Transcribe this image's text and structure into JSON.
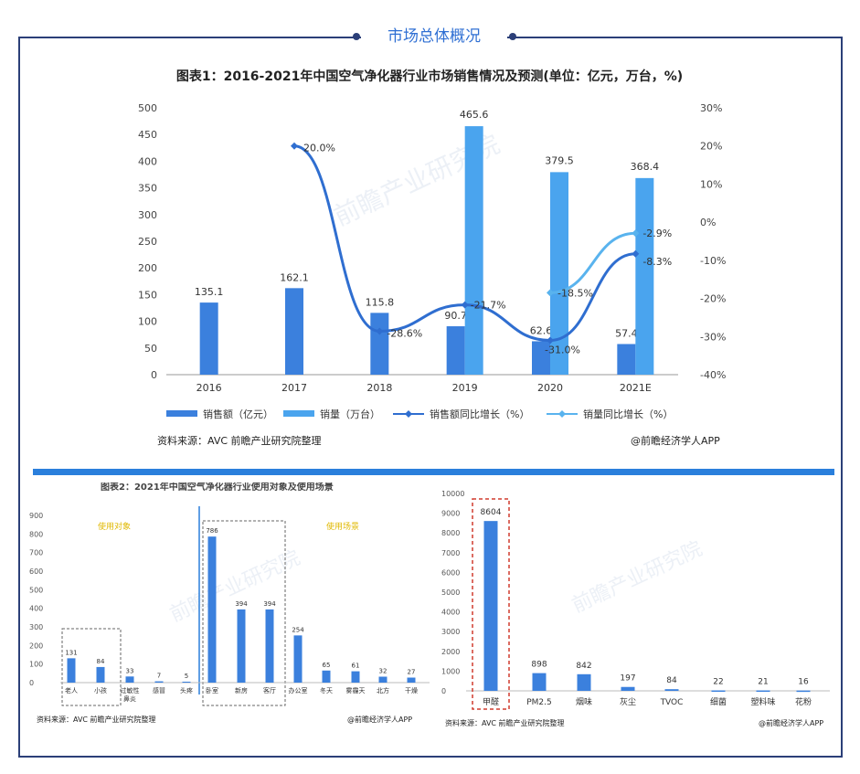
{
  "header": {
    "title": "市场总体概况"
  },
  "colors": {
    "frame": "#2b3f78",
    "accent": "#2f6fd3",
    "bar_dark": "#3b80dd",
    "bar_light": "#4aa4ee",
    "line_dark": "#2f6ed0",
    "line_light": "#59b3ee",
    "highlight": "#d13b2f",
    "legend_yellow": "#e0b800"
  },
  "watermark": "前瞻产业研究院",
  "main": {
    "source": "资料来源：AVC 前瞻产业研究院整理",
    "credit": "@前瞻经济学人APP"
  },
  "bottom_left": {
    "title": "图表2：2021年中国空气净化器行业使用对象及使用场景",
    "group_labels": [
      "使用对象",
      "使用场景"
    ],
    "source": "资料来源：AVC 前瞻产业研究院整理",
    "credit": "@前瞻经济学人APP"
  },
  "bottom_right": {
    "source": "资料来源：AVC 前瞻产业研究院整理",
    "credit": "@前瞻经济学人APP"
  },
  "chart_data": [
    {
      "type": "bar",
      "title": "图表1：2016-2021年中国空气净化器行业市场销售情况及预测(单位：亿元，万台，%)",
      "categories": [
        "2016",
        "2017",
        "2018",
        "2019",
        "2020",
        "2021E"
      ],
      "series": [
        {
          "name": "销售额（亿元）",
          "type": "bar",
          "axis": "left",
          "values": [
            135.1,
            162.1,
            115.8,
            90.7,
            62.6,
            57.4
          ],
          "labels": [
            "135.1",
            "162.1",
            "115.8",
            "90.7",
            "62.6",
            "57.4"
          ]
        },
        {
          "name": "销量（万台）",
          "type": "bar",
          "axis": "left",
          "values": [
            null,
            null,
            null,
            465.6,
            379.5,
            368.4
          ],
          "labels": [
            "",
            "",
            "",
            "465.6",
            "379.5",
            "368.4"
          ]
        },
        {
          "name": "销售额同比增长（%）",
          "type": "line",
          "axis": "right",
          "values": [
            null,
            20.0,
            -28.6,
            -21.7,
            -31.0,
            -8.3
          ],
          "labels": [
            "",
            "20.0%",
            "-28.6%",
            "-21.7%",
            "-31.0%",
            "-8.3%"
          ]
        },
        {
          "name": "销量同比增长（%）",
          "type": "line",
          "axis": "right",
          "values": [
            null,
            null,
            null,
            null,
            -18.5,
            -2.9
          ],
          "labels": [
            "",
            "",
            "",
            "",
            "-18.5%",
            "-2.9%"
          ]
        }
      ],
      "ylim": [
        0,
        500
      ],
      "yticks": [
        0,
        50,
        100,
        150,
        200,
        250,
        300,
        350,
        400,
        450,
        500
      ],
      "y2lim": [
        -40,
        30
      ],
      "y2ticks": [
        "30%",
        "20%",
        "10%",
        "0%",
        "-10%",
        "-20%",
        "-30%",
        "-40%"
      ],
      "legend_position": "bottom"
    },
    {
      "type": "bar",
      "categories": [
        "老人",
        "小孩",
        "过敏性鼻炎",
        "感冒",
        "头疼",
        "卧室",
        "新房",
        "客厅",
        "办公室",
        "冬天",
        "雾霾天",
        "北方",
        "干燥"
      ],
      "values": [
        131,
        84,
        33,
        7,
        5,
        786,
        394,
        394,
        254,
        65,
        61,
        32,
        27
      ],
      "ylim": [
        0,
        900
      ],
      "yticks": [
        0,
        100,
        200,
        300,
        400,
        500,
        600,
        700,
        800,
        900
      ]
    },
    {
      "type": "bar",
      "categories": [
        "甲醛",
        "PM2.5",
        "烟味",
        "灰尘",
        "TVOC",
        "细菌",
        "塑料味",
        "花粉"
      ],
      "values": [
        8604,
        898,
        842,
        197,
        84,
        22,
        21,
        16
      ],
      "ylim": [
        0,
        10000
      ],
      "yticks": [
        0,
        1000,
        2000,
        3000,
        4000,
        5000,
        6000,
        7000,
        8000,
        9000,
        10000
      ]
    }
  ]
}
